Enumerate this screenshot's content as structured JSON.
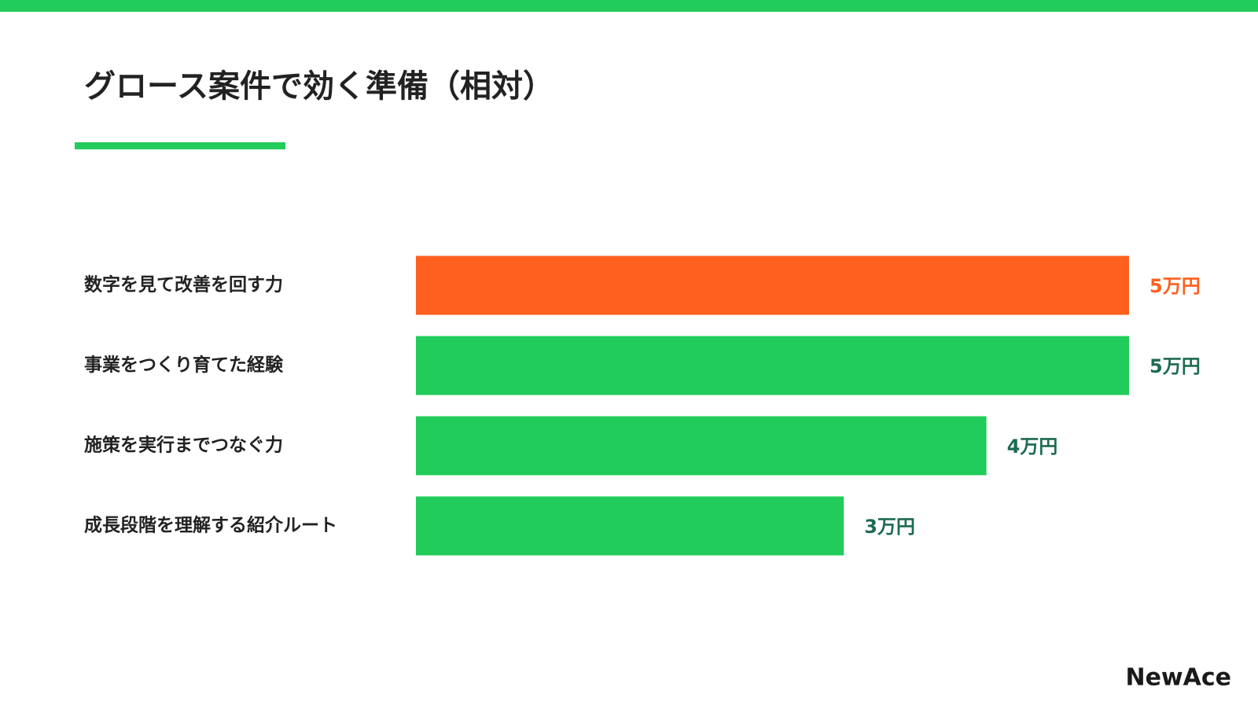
{
  "chart_data": {
    "type": "hbar",
    "title": "グロース案件で効く準備（相対）",
    "categories": [
      "数字を見て改善を回す力",
      "事業をつくり育てた経験",
      "施策を実行までつなぐ力",
      "成長段階を理解する紹介ルート"
    ],
    "values": [
      5,
      5,
      4,
      3
    ],
    "value_labels": [
      "5万円",
      "5万円",
      "4万円",
      "3万円"
    ],
    "colors": [
      "#ff5f1f",
      "#22cc5a",
      "#22cc5a",
      "#22cc5a"
    ],
    "label_colors": [
      "#ff5f1f",
      "#1e6b4f",
      "#1e6b4f",
      "#1e6b4f"
    ],
    "xlim": [
      0,
      5
    ]
  },
  "logo": "NewAce"
}
